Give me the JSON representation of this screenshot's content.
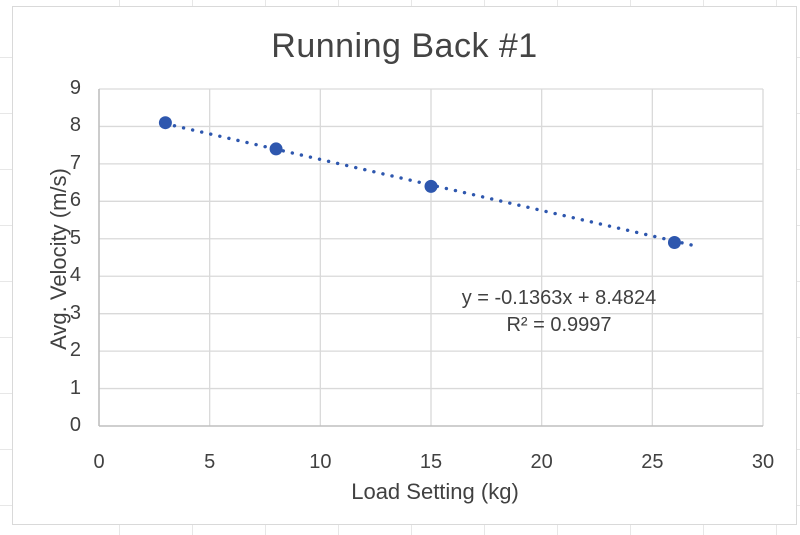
{
  "chart": {
    "title": "Running Back #1",
    "annotation": {
      "equation": "y = -0.1363x + 8.4824",
      "r_squared": "R² = 0.9997"
    },
    "colors": {
      "series": "#2e57ae",
      "text": "#414141",
      "gridline": "#d9d9d9",
      "axis_line": "#bfbfbf",
      "chart_border": "#d9d9d9",
      "sheet_grid": "#e7e7e7",
      "background": "#ffffff"
    }
  },
  "chart_data": {
    "type": "scatter",
    "title": "Running Back #1",
    "xlabel": "Load Setting (kg)",
    "ylabel": "Avg. Velocity (m/s)",
    "x": [
      3,
      8,
      15,
      26
    ],
    "y": [
      8.1,
      7.4,
      6.4,
      4.9
    ],
    "xlim": [
      0,
      30
    ],
    "ylim": [
      0,
      9
    ],
    "x_ticks": [
      0,
      5,
      10,
      15,
      20,
      25,
      30
    ],
    "y_ticks": [
      0,
      1,
      2,
      3,
      4,
      5,
      6,
      7,
      8,
      9
    ],
    "grid": true,
    "legend": false,
    "marker": "circle",
    "trendline": {
      "slope": -0.1363,
      "intercept": 8.4824,
      "x_range": [
        3,
        27
      ],
      "style": "dotted",
      "equation_label": "y = -0.1363x + 8.4824",
      "r2_label": "R² = 0.9997"
    }
  }
}
